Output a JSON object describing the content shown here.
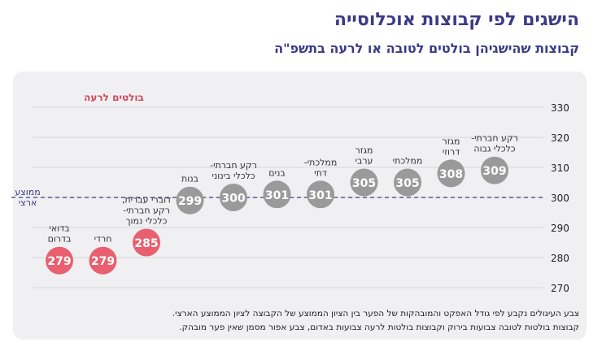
{
  "header": {
    "title": "הישגים לפי קבוצות אוכלוסייה",
    "subtitle": "קבוצות שהישגיהן בולטים לטובה או לרעה בתשפ\"ה"
  },
  "chart_data": {
    "type": "scatter",
    "title": "הישגים לפי קבוצות אוכלוסייה",
    "subtitle": "קבוצות שהישגיהן בולטים לטובה או לרעה בתשפ\"ה",
    "ylim": [
      270,
      330
    ],
    "yticks": [
      270,
      280,
      290,
      300,
      310,
      320,
      330
    ],
    "grid": true,
    "reference_line": {
      "value": 300,
      "label_lines": [
        "ממוצע",
        "ארצי"
      ],
      "color": "#3b3a86"
    },
    "annotation": {
      "text": "בולטים לרעה",
      "color": "#d2455a"
    },
    "colors": {
      "negative": "#e8606f",
      "neutral": "#9a9a9a",
      "text": "#333333",
      "axis": "#222222"
    },
    "points": [
      {
        "label_lines": [
          "בדואי",
          "בדרום"
        ],
        "value": 279,
        "status": "negative"
      },
      {
        "label_lines": [
          "חרדי"
        ],
        "value": 279,
        "status": "negative"
      },
      {
        "label_lines": [
          "דוברי עברית,",
          "רקע חברתי-",
          "כלכלי נמוך"
        ],
        "value": 285,
        "status": "negative"
      },
      {
        "label_lines": [
          "בנות"
        ],
        "value": 299,
        "status": "neutral"
      },
      {
        "label_lines": [
          "רקע חברתי-",
          "כלכלי בינוני"
        ],
        "value": 300,
        "status": "neutral"
      },
      {
        "label_lines": [
          "בנים"
        ],
        "value": 301,
        "status": "neutral"
      },
      {
        "label_lines": [
          "ממלכתי-",
          "דתי"
        ],
        "value": 301,
        "status": "neutral"
      },
      {
        "label_lines": [
          "מגזר",
          "ערבי"
        ],
        "value": 305,
        "status": "neutral"
      },
      {
        "label_lines": [
          "ממלכתי"
        ],
        "value": 305,
        "status": "neutral"
      },
      {
        "label_lines": [
          "מגזר",
          "דרוזי"
        ],
        "value": 308,
        "status": "neutral"
      },
      {
        "label_lines": [
          "רקע חברתי-",
          "כלכלי גבוה"
        ],
        "value": 309,
        "status": "neutral"
      }
    ]
  },
  "footnotes": [
    "צבע העיגולים נקבע לפי גודל האפקט והמובהקות של הפער בין הציון הממוצע של הקבוצה לציון הממוצע הארצי.",
    "קבוצות בולטות לטובה צבועות בירוק וקבוצות בולטות לרעה צבועות באדום, צבע אפור מסמן שאין פער מובהק."
  ]
}
